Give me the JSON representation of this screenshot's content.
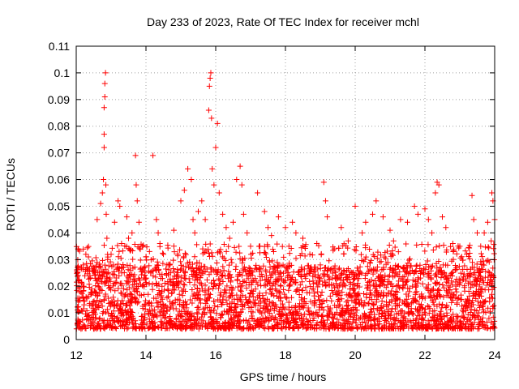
{
  "chart_data": {
    "type": "scatter",
    "title": "Day 233 of 2023, Rate Of TEC Index for receiver mchl",
    "xlabel": "GPS time / hours",
    "ylabel": "ROTI / TECUs",
    "xlim": [
      12,
      24
    ],
    "ylim": [
      0,
      0.11
    ],
    "x_ticks": [
      12,
      14,
      16,
      18,
      20,
      22,
      24
    ],
    "x_tick_labels": [
      "12",
      "14",
      "16",
      "18",
      "20",
      "22",
      "24"
    ],
    "y_ticks": [
      0,
      0.01,
      0.02,
      0.03,
      0.04,
      0.05,
      0.06,
      0.07,
      0.08,
      0.09,
      0.1,
      0.11
    ],
    "y_tick_labels": [
      "0",
      "0.01",
      "0.02",
      "0.03",
      "0.04",
      "0.05",
      "0.06",
      "0.07",
      "0.08",
      "0.09",
      "0.1",
      "0.11"
    ],
    "grid": true,
    "marker": "+",
    "color": "#ff0000",
    "series": [
      {
        "name": "ROTI",
        "x": [
          12.05,
          12.2,
          12.35,
          12.5,
          12.6,
          12.7,
          12.75,
          12.78,
          12.8,
          12.8,
          12.8,
          12.82,
          12.82,
          12.84,
          12.85,
          12.86,
          12.88,
          12.9,
          13.0,
          13.1,
          13.2,
          13.25,
          13.3,
          13.45,
          13.5,
          13.6,
          13.7,
          13.72,
          13.75,
          13.8,
          13.9,
          14.0,
          14.1,
          14.2,
          14.3,
          14.35,
          14.4,
          14.5,
          14.6,
          14.8,
          15.0,
          15.1,
          15.2,
          15.3,
          15.35,
          15.4,
          15.5,
          15.6,
          15.7,
          15.8,
          15.82,
          15.84,
          15.86,
          15.88,
          15.9,
          15.95,
          16.0,
          16.05,
          16.1,
          16.2,
          16.3,
          16.4,
          16.5,
          16.6,
          16.7,
          16.75,
          16.8,
          16.9,
          17.0,
          17.2,
          17.4,
          17.5,
          17.6,
          17.8,
          18.0,
          18.1,
          18.2,
          18.3,
          18.5,
          18.7,
          18.9,
          19.0,
          19.1,
          19.15,
          19.2,
          19.4,
          19.6,
          19.8,
          20.0,
          20.2,
          20.3,
          20.5,
          20.6,
          20.8,
          21.0,
          21.1,
          21.3,
          21.5,
          21.7,
          21.8,
          22.0,
          22.1,
          22.2,
          22.3,
          22.35,
          22.4,
          22.5,
          22.6,
          22.8,
          23.0,
          23.2,
          23.35,
          23.4,
          23.5,
          23.6,
          23.7,
          23.8,
          23.9,
          23.92,
          23.95,
          24.0
        ],
        "y": [
          0.034,
          0.028,
          0.031,
          0.027,
          0.045,
          0.051,
          0.055,
          0.06,
          0.087,
          0.077,
          0.072,
          0.091,
          0.096,
          0.1,
          0.058,
          0.047,
          0.038,
          0.03,
          0.032,
          0.044,
          0.052,
          0.05,
          0.036,
          0.046,
          0.038,
          0.04,
          0.069,
          0.058,
          0.052,
          0.044,
          0.035,
          0.031,
          0.033,
          0.069,
          0.045,
          0.04,
          0.036,
          0.032,
          0.028,
          0.041,
          0.052,
          0.056,
          0.064,
          0.06,
          0.045,
          0.04,
          0.048,
          0.052,
          0.045,
          0.086,
          0.095,
          0.098,
          0.1,
          0.083,
          0.064,
          0.058,
          0.072,
          0.081,
          0.055,
          0.047,
          0.042,
          0.038,
          0.044,
          0.06,
          0.065,
          0.058,
          0.047,
          0.04,
          0.035,
          0.055,
          0.048,
          0.042,
          0.039,
          0.046,
          0.042,
          0.035,
          0.044,
          0.04,
          0.038,
          0.032,
          0.036,
          0.028,
          0.059,
          0.052,
          0.046,
          0.034,
          0.042,
          0.037,
          0.05,
          0.04,
          0.044,
          0.047,
          0.052,
          0.046,
          0.041,
          0.037,
          0.045,
          0.044,
          0.05,
          0.047,
          0.049,
          0.045,
          0.04,
          0.055,
          0.059,
          0.058,
          0.046,
          0.042,
          0.036,
          0.035,
          0.032,
          0.054,
          0.045,
          0.04,
          0.035,
          0.04,
          0.044,
          0.037,
          0.055,
          0.052,
          0.045
        ],
        "note": "listed points are the sparse outliers; dense band of ~0.003-0.03 values present across full 12-24 h range"
      }
    ]
  }
}
